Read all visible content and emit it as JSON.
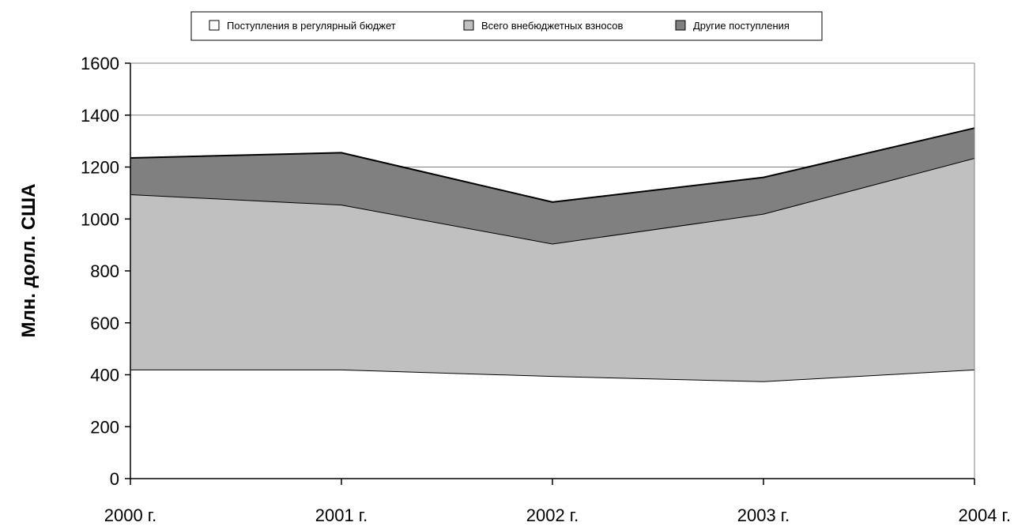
{
  "chart_data": {
    "type": "area",
    "stacked": true,
    "categories": [
      "2000 г.",
      "2001 г.",
      "2002 г.",
      "2003 г.",
      "2004 г."
    ],
    "series": [
      {
        "name": "Поступления в регулярный бюджет",
        "values": [
          420,
          420,
          395,
          375,
          420
        ],
        "color": "#ffffff"
      },
      {
        "name": "Всего внебюджетных взносов",
        "values": [
          675,
          635,
          510,
          645,
          815
        ],
        "color": "#c0c0c0"
      },
      {
        "name": "Другие поступления",
        "values": [
          140,
          200,
          160,
          140,
          115
        ],
        "color": "#808080"
      }
    ],
    "ylabel": "Млн. долл. США",
    "ylim": [
      0,
      1600
    ],
    "yticks": [
      0,
      200,
      400,
      600,
      800,
      1000,
      1200,
      1400,
      1600
    ],
    "gridlines": [
      1200,
      1400,
      1600
    ],
    "legend_position": "top"
  }
}
